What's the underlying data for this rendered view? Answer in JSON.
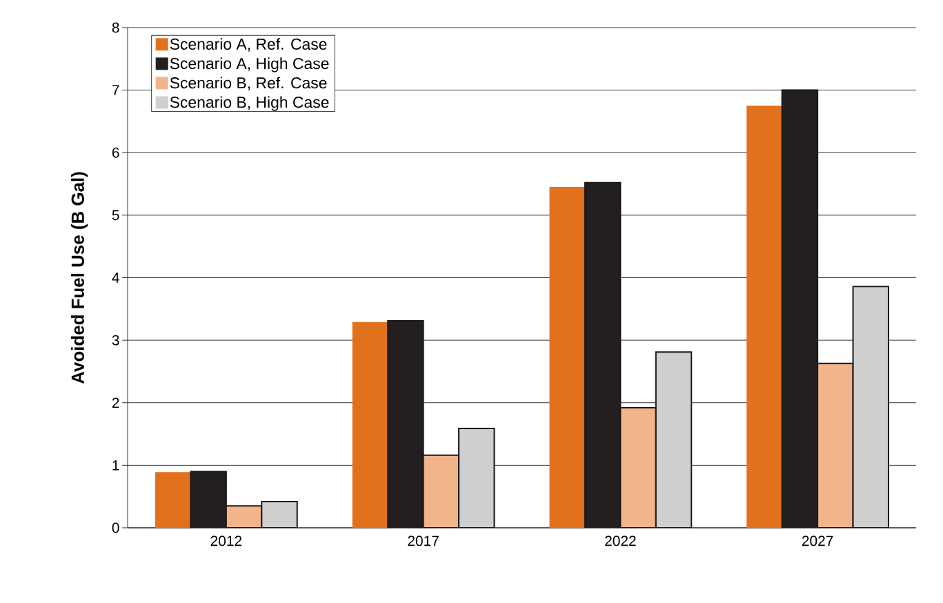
{
  "chart_data": {
    "type": "bar",
    "ylabel": "Avoided Fuel Use (B Gal)",
    "categories": [
      "2012",
      "2017",
      "2022",
      "2027"
    ],
    "series": [
      {
        "name": "Scenario A, Ref. Case",
        "color": "#e2711d",
        "values": [
          0.89,
          3.29,
          5.45,
          6.75
        ]
      },
      {
        "name": "Scenario A, High Case",
        "color": "#231f20",
        "values": [
          0.9,
          3.31,
          5.52,
          7.0
        ]
      },
      {
        "name": "Scenario B, Ref. Case",
        "color": "#f2b48a",
        "values": [
          0.35,
          1.16,
          1.92,
          2.63
        ]
      },
      {
        "name": "Scenario B, High Case",
        "color": "#cfcfcf",
        "values": [
          0.42,
          1.59,
          2.81,
          3.86
        ]
      }
    ],
    "ylim": [
      0,
      8
    ],
    "yticks": [
      0,
      1,
      2,
      3,
      4,
      5,
      6,
      7,
      8
    ],
    "grid": "y",
    "legend": "top left"
  }
}
